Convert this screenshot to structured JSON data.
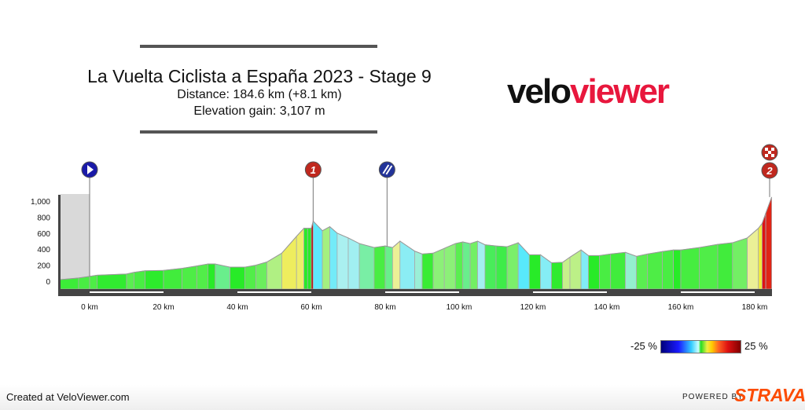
{
  "header": {
    "title": "La Vuelta Ciclista a España 2023 - Stage 9",
    "distance": "Distance: 184.6 km (+8.1 km)",
    "elevation_gain": "Elevation gain: 3,107 m",
    "logo_velo": "velo",
    "logo_viewer": "viewer"
  },
  "legend": {
    "min_label": "-25 %",
    "max_label": "25 %"
  },
  "footer": {
    "created": "Created at VeloViewer.com",
    "powered": "POWERED BY",
    "strava": "STRAVA"
  },
  "markers": [
    {
      "type": "start",
      "km": 0,
      "label": ""
    },
    {
      "type": "climb",
      "km": 60.5,
      "label": "1"
    },
    {
      "type": "feed",
      "km": 80.5,
      "label": ""
    },
    {
      "type": "climb",
      "km": 184.6,
      "label": "2"
    },
    {
      "type": "finish",
      "km": 184.6,
      "label": ""
    }
  ],
  "chart_data": {
    "type": "area",
    "title": "La Vuelta Ciclista a España 2023 - Stage 9",
    "xlabel": "",
    "ylabel": "",
    "xlim": [
      -8,
      184.6
    ],
    "ylim": [
      0,
      1100
    ],
    "x_ticks": [
      "0 km",
      "20 km",
      "40 km",
      "60 km",
      "80 km",
      "100 km",
      "120 km",
      "140 km",
      "160 km",
      "180 km"
    ],
    "y_ticks": [
      "0",
      "200",
      "400",
      "600",
      "800",
      "1,000"
    ],
    "colors": {
      "neutral_zone": "#d9d9d9",
      "baseline": "#444444"
    },
    "points": [
      [
        -8,
        20
      ],
      [
        -3,
        40
      ],
      [
        0,
        60
      ],
      [
        2,
        75
      ],
      [
        10,
        90
      ],
      [
        12,
        110
      ],
      [
        15,
        130
      ],
      [
        20,
        135
      ],
      [
        25,
        160
      ],
      [
        29,
        190
      ],
      [
        32,
        215
      ],
      [
        34,
        215
      ],
      [
        38,
        175
      ],
      [
        42,
        175
      ],
      [
        45,
        200
      ],
      [
        48,
        240
      ],
      [
        52,
        350
      ],
      [
        56,
        560
      ],
      [
        58,
        660
      ],
      [
        59,
        660
      ],
      [
        60,
        660
      ],
      [
        60.5,
        750
      ],
      [
        63,
        630
      ],
      [
        65,
        680
      ],
      [
        67,
        600
      ],
      [
        70,
        540
      ],
      [
        73,
        470
      ],
      [
        77,
        420
      ],
      [
        80,
        440
      ],
      [
        82,
        420
      ],
      [
        84,
        500
      ],
      [
        88,
        375
      ],
      [
        90,
        340
      ],
      [
        93,
        350
      ],
      [
        96,
        410
      ],
      [
        99,
        470
      ],
      [
        101,
        490
      ],
      [
        103,
        470
      ],
      [
        105,
        500
      ],
      [
        107,
        455
      ],
      [
        110,
        440
      ],
      [
        113,
        430
      ],
      [
        116,
        480
      ],
      [
        119,
        330
      ],
      [
        122,
        330
      ],
      [
        125,
        230
      ],
      [
        128,
        235
      ],
      [
        130,
        300
      ],
      [
        133,
        390
      ],
      [
        135,
        320
      ],
      [
        138,
        320
      ],
      [
        141,
        340
      ],
      [
        145,
        360
      ],
      [
        148,
        310
      ],
      [
        151,
        340
      ],
      [
        155,
        370
      ],
      [
        158,
        390
      ],
      [
        160,
        390
      ],
      [
        165,
        420
      ],
      [
        170,
        460
      ],
      [
        174,
        480
      ],
      [
        178,
        540
      ],
      [
        181,
        660
      ],
      [
        182,
        720
      ],
      [
        183,
        850
      ],
      [
        184.6,
        1050
      ]
    ]
  }
}
